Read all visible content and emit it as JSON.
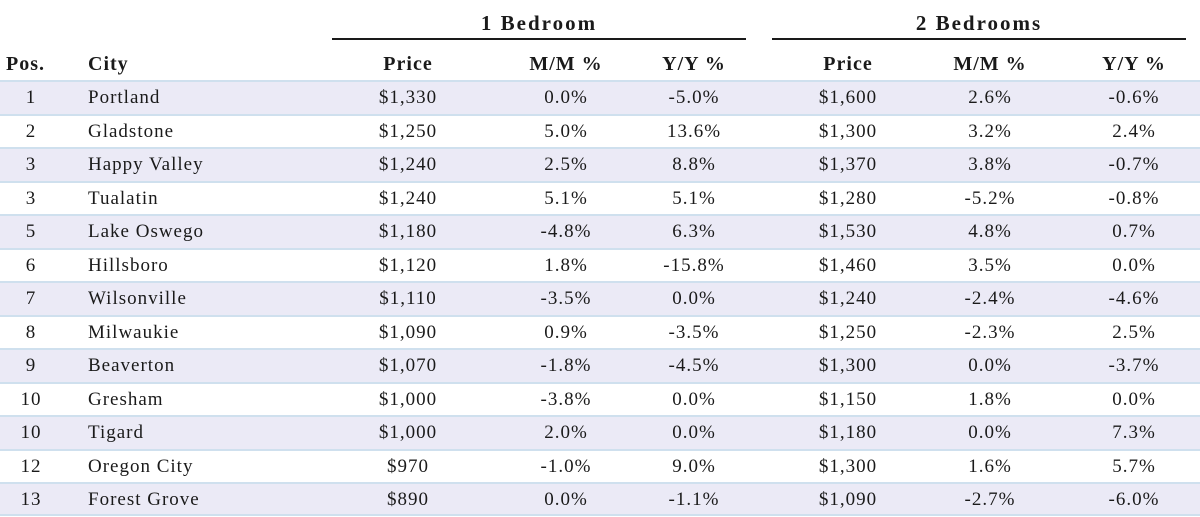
{
  "chart_data": {
    "type": "table",
    "groups": [
      "1 Bedroom",
      "2 Bedrooms"
    ],
    "columns": [
      "Pos.",
      "City",
      "Price",
      "M/M %",
      "Y/Y %",
      "Price",
      "M/M %",
      "Y/Y %"
    ],
    "rows": [
      [
        "1",
        "Portland",
        "$1,330",
        "0.0%",
        "-5.0%",
        "$1,600",
        "2.6%",
        "-0.6%"
      ],
      [
        "2",
        "Gladstone",
        "$1,250",
        "5.0%",
        "13.6%",
        "$1,300",
        "3.2%",
        "2.4%"
      ],
      [
        "3",
        "Happy Valley",
        "$1,240",
        "2.5%",
        "8.8%",
        "$1,370",
        "3.8%",
        "-0.7%"
      ],
      [
        "3",
        "Tualatin",
        "$1,240",
        "5.1%",
        "5.1%",
        "$1,280",
        "-5.2%",
        "-0.8%"
      ],
      [
        "5",
        "Lake Oswego",
        "$1,180",
        "-4.8%",
        "6.3%",
        "$1,530",
        "4.8%",
        "0.7%"
      ],
      [
        "6",
        "Hillsboro",
        "$1,120",
        "1.8%",
        "-15.8%",
        "$1,460",
        "3.5%",
        "0.0%"
      ],
      [
        "7",
        "Wilsonville",
        "$1,110",
        "-3.5%",
        "0.0%",
        "$1,240",
        "-2.4%",
        "-4.6%"
      ],
      [
        "8",
        "Milwaukie",
        "$1,090",
        "0.9%",
        "-3.5%",
        "$1,250",
        "-2.3%",
        "2.5%"
      ],
      [
        "9",
        "Beaverton",
        "$1,070",
        "-1.8%",
        "-4.5%",
        "$1,300",
        "0.0%",
        "-3.7%"
      ],
      [
        "10",
        "Gresham",
        "$1,000",
        "-3.8%",
        "0.0%",
        "$1,150",
        "1.8%",
        "0.0%"
      ],
      [
        "10",
        "Tigard",
        "$1,000",
        "2.0%",
        "0.0%",
        "$1,180",
        "0.0%",
        "7.3%"
      ],
      [
        "12",
        "Oregon City",
        "$970",
        "-1.0%",
        "9.0%",
        "$1,300",
        "1.6%",
        "5.7%"
      ],
      [
        "13",
        "Forest Grove",
        "$890",
        "0.0%",
        "-1.1%",
        "$1,090",
        "-2.7%",
        "-6.0%"
      ]
    ]
  },
  "colors": {
    "row_shade": "#ebeaf6",
    "row_rule": "#cfe0ee",
    "text": "#1a1a1a"
  }
}
